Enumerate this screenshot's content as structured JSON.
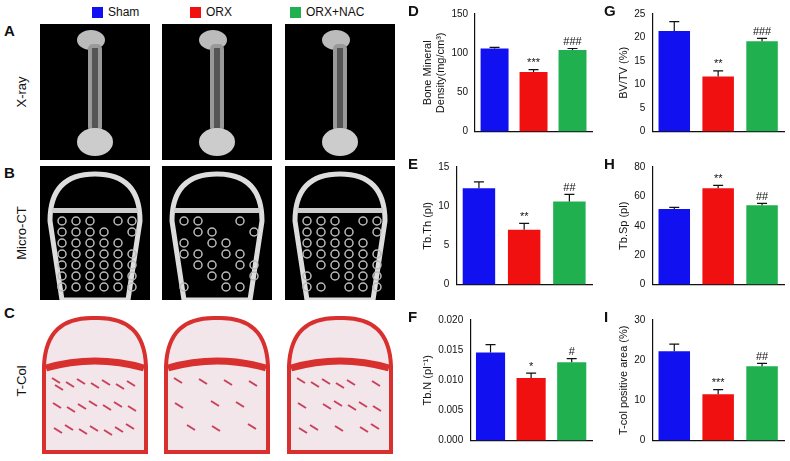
{
  "groups": [
    {
      "name": "Sham",
      "color": "#1010f0"
    },
    {
      "name": "ORX",
      "color": "#f01010"
    },
    {
      "name": "ORX+NAC",
      "color": "#20b050"
    }
  ],
  "image_panels": [
    {
      "panel": "A",
      "label": "X-ray"
    },
    {
      "panel": "B",
      "label": "Micro-CT"
    },
    {
      "panel": "C",
      "label": "T-Col"
    }
  ],
  "chart_data": [
    {
      "type": "bar",
      "panel": "D",
      "y_label": [
        "Bone Mineral",
        "Density(mg/cm³)"
      ],
      "categories": [
        null,
        null,
        null
      ],
      "values": [
        106,
        76,
        104
      ],
      "errors": [
        1.5,
        3,
        2
      ],
      "colors": [
        "#1010f0",
        "#f01010",
        "#20b050"
      ],
      "annotations": [
        null,
        "***",
        "###"
      ],
      "ylim": [
        0,
        150
      ],
      "yticks": [
        0,
        50,
        100,
        150
      ],
      "grid": false
    },
    {
      "type": "bar",
      "panel": "E",
      "y_label": [
        "Tb.Th (pl)"
      ],
      "categories": [
        null,
        null,
        null
      ],
      "values": [
        12.3,
        7.0,
        10.6
      ],
      "errors": [
        0.8,
        0.8,
        0.9
      ],
      "colors": [
        "#1010f0",
        "#f01010",
        "#20b050"
      ],
      "annotations": [
        null,
        "**",
        "##"
      ],
      "ylim": [
        0,
        15
      ],
      "yticks": [
        0,
        5,
        10,
        15
      ],
      "grid": false
    },
    {
      "type": "bar",
      "panel": "F",
      "y_label": [
        "Tb.N (pl⁻¹)"
      ],
      "categories": [
        null,
        null,
        null
      ],
      "values": [
        0.0146,
        0.0104,
        0.013
      ],
      "errors": [
        0.0013,
        0.0008,
        0.0006
      ],
      "colors": [
        "#1010f0",
        "#f01010",
        "#20b050"
      ],
      "annotations": [
        null,
        "*",
        "#"
      ],
      "ylim": [
        0,
        0.02
      ],
      "yticks": [
        {
          "value": 0,
          "label": "0.000"
        },
        {
          "value": 0.005,
          "label": "0.005"
        },
        {
          "value": 0.01,
          "label": "0.010"
        },
        {
          "value": 0.015,
          "label": "0.015"
        },
        {
          "value": 0.02,
          "label": "0.020"
        }
      ],
      "grid": false
    },
    {
      "type": "bar",
      "panel": "G",
      "y_label": [
        "BV/TV (%)"
      ],
      "categories": [
        null,
        null,
        null
      ],
      "values": [
        21.4,
        11.7,
        19.2
      ],
      "errors": [
        2.0,
        1.2,
        0.6
      ],
      "colors": [
        "#1010f0",
        "#f01010",
        "#20b050"
      ],
      "annotations": [
        null,
        "**",
        "###"
      ],
      "ylim": [
        0,
        25
      ],
      "yticks": [
        0,
        5,
        10,
        15,
        20,
        25
      ],
      "grid": false
    },
    {
      "type": "bar",
      "panel": "H",
      "y_label": [
        "Tb.Sp (pl)"
      ],
      "categories": [
        null,
        null,
        null
      ],
      "values": [
        51.5,
        65.5,
        54
      ],
      "errors": [
        1.0,
        2.0,
        1.2
      ],
      "colors": [
        "#1010f0",
        "#f01010",
        "#20b050"
      ],
      "annotations": [
        null,
        "**",
        "##"
      ],
      "ylim": [
        0,
        80
      ],
      "yticks": [
        0,
        20,
        40,
        60,
        80
      ],
      "grid": false
    },
    {
      "type": "bar",
      "panel": "I",
      "y_label": [
        "T-col positive area (%)"
      ],
      "categories": [
        null,
        null,
        null
      ],
      "values": [
        22.2,
        11.5,
        18.5
      ],
      "errors": [
        1.8,
        1.2,
        0.7
      ],
      "colors": [
        "#1010f0",
        "#f01010",
        "#20b050"
      ],
      "annotations": [
        null,
        "***",
        "##"
      ],
      "ylim": [
        0,
        30
      ],
      "yticks": [
        0,
        10,
        20,
        30
      ],
      "grid": false
    }
  ]
}
